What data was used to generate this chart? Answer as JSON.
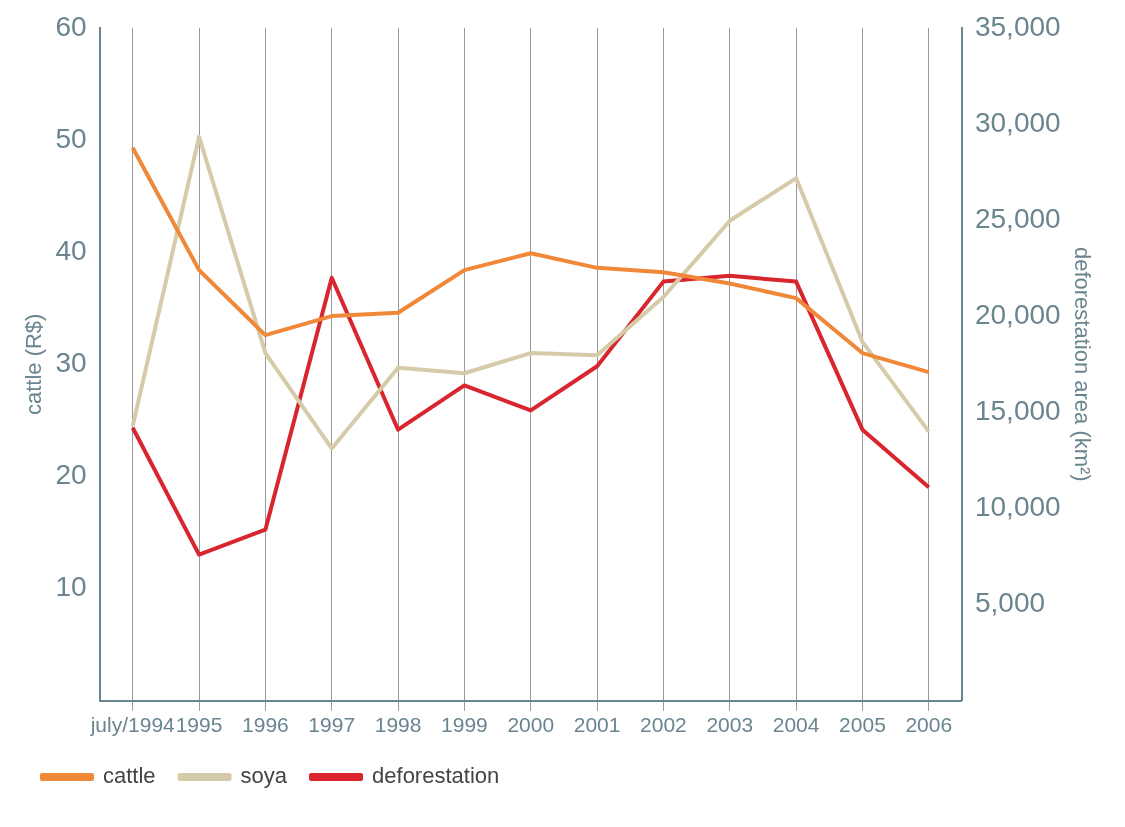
{
  "chart_data": {
    "type": "line",
    "categories": [
      "july/1994",
      "1995",
      "1996",
      "1997",
      "1998",
      "1999",
      "2000",
      "2001",
      "2002",
      "2003",
      "2004",
      "2005",
      "2006"
    ],
    "series": [
      {
        "name": "cattle",
        "color": "#f0883a",
        "values": [
          49.3,
          38.4,
          32.6,
          34.3,
          34.6,
          38.4,
          39.9,
          38.6,
          38.2,
          37.2,
          35.9,
          31,
          29.3
        ]
      },
      {
        "name": "soya",
        "color": "#d6cba8",
        "values": [
          24.5,
          50.3,
          31,
          22.5,
          29.7,
          29.2,
          31,
          30.8,
          36,
          42.8,
          46.6,
          32,
          24
        ]
      },
      {
        "name": "deforestation",
        "color": "#d9262e",
        "axis": "y2",
        "values": [
          14200,
          7600,
          8900,
          22000,
          14100,
          16400,
          15100,
          17400,
          21800,
          22100,
          21800,
          14100,
          11100
        ]
      }
    ],
    "ylabel": "cattle (R$)",
    "y2label": "deforestation area (km²)",
    "ylim": [
      0,
      60
    ],
    "yticks": [
      10,
      20,
      30,
      40,
      50,
      60
    ],
    "y2lim": [
      0,
      35000
    ],
    "y2ticks": [
      {
        "value": 5000,
        "label": "5,000"
      },
      {
        "value": 10000,
        "label": "10,000"
      },
      {
        "value": 15000,
        "label": "15,000"
      },
      {
        "value": 20000,
        "label": "20,000"
      },
      {
        "value": 25000,
        "label": "25,000"
      },
      {
        "value": 30000,
        "label": "30,000"
      },
      {
        "value": 35000,
        "label": "35,000"
      }
    ],
    "grid": "x",
    "legend": "bottom",
    "marker": "none",
    "line_style": "solid"
  }
}
